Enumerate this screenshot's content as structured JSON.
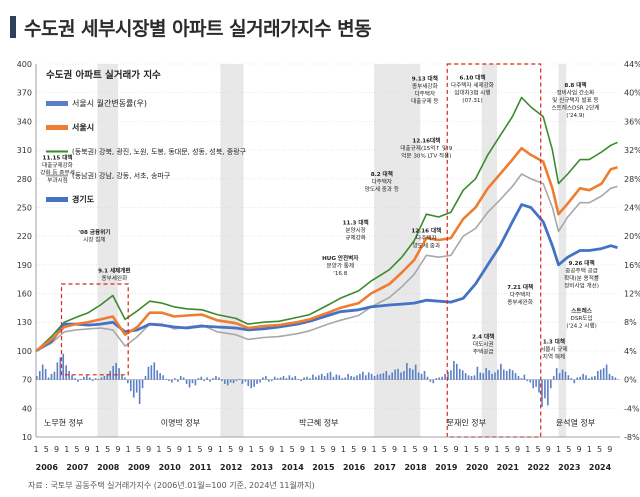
{
  "page": {
    "title": "수도권 세부시장별 아파트 실거래가지수 변동",
    "source": "자료 : 국토부 공동주택 실거래가지수 (2006년.01월=100 기준, 2024년 11월까지)"
  },
  "colors": {
    "seoul_apt": "#ee7d31",
    "northeast": "#3a8a2e",
    "southeast": "#a8a8a8",
    "gyeonggi": "#4472c4",
    "monthly_bar": "#5b7fc6",
    "shade": "#e8e8e8",
    "highlight_box": "#d9261c"
  },
  "chart_data": {
    "type": "line",
    "title": "수도권 아파트 실거래가 지수",
    "left_axis": {
      "ylim": [
        10,
        400
      ],
      "ticks": [
        10,
        40,
        70,
        100,
        130,
        160,
        190,
        220,
        250,
        280,
        310,
        340,
        370,
        400
      ]
    },
    "right_axis": {
      "ylim": [
        -8,
        44
      ],
      "ticks": [
        "-8%",
        "-4%",
        "0%",
        "4%",
        "8%",
        "12%",
        "16%",
        "20%",
        "24%",
        "28%",
        "32%",
        "36%",
        "40%",
        "44%"
      ]
    },
    "x_month_labels": [
      "1",
      "5",
      "9"
    ],
    "x_years": [
      "2006",
      "2007",
      "2008",
      "2009",
      "2010",
      "2011",
      "2012",
      "2013",
      "2014",
      "2015",
      "2016",
      "2017",
      "2018",
      "2019",
      "2020",
      "2021",
      "2022",
      "2023",
      "2024"
    ],
    "legend": [
      {
        "name": "서울시 월간변동률(우)",
        "key": "monthly_bar"
      },
      {
        "name": "서울시",
        "key": "seoul_apt"
      },
      {
        "name": "(동북권) 강북, 광진, 노원, 도봉, 동대문, 성동, 성북, 중랑구",
        "key": "northeast"
      },
      {
        "name": "(동남권) 강남, 강동, 서초, 송파구",
        "key": "southeast"
      },
      {
        "name": "경기도",
        "key": "gyeonggi"
      }
    ],
    "series": [
      {
        "name": "서울시",
        "key": "seoul_apt",
        "points": [
          [
            2006.0,
            100
          ],
          [
            2006.5,
            112
          ],
          [
            2006.92,
            125
          ],
          [
            2007.3,
            128
          ],
          [
            2007.7,
            130
          ],
          [
            2008.1,
            133
          ],
          [
            2008.5,
            136
          ],
          [
            2008.9,
            117
          ],
          [
            2009.3,
            125
          ],
          [
            2009.7,
            140
          ],
          [
            2010.1,
            140
          ],
          [
            2010.5,
            136
          ],
          [
            2010.9,
            137
          ],
          [
            2011.4,
            138
          ],
          [
            2011.9,
            132
          ],
          [
            2012.5,
            129
          ],
          [
            2012.9,
            124
          ],
          [
            2013.4,
            126
          ],
          [
            2013.9,
            127
          ],
          [
            2014.5,
            130
          ],
          [
            2014.9,
            133
          ],
          [
            2015.5,
            140
          ],
          [
            2015.9,
            145
          ],
          [
            2016.5,
            150
          ],
          [
            2016.9,
            160
          ],
          [
            2017.5,
            170
          ],
          [
            2017.9,
            182
          ],
          [
            2018.3,
            195
          ],
          [
            2018.7,
            218
          ],
          [
            2019.1,
            216
          ],
          [
            2019.5,
            218
          ],
          [
            2019.9,
            238
          ],
          [
            2020.3,
            250
          ],
          [
            2020.7,
            270
          ],
          [
            2021.1,
            285
          ],
          [
            2021.5,
            300
          ],
          [
            2021.8,
            312
          ],
          [
            2022.1,
            305
          ],
          [
            2022.5,
            298
          ],
          [
            2022.8,
            270
          ],
          [
            2023.0,
            243
          ],
          [
            2023.3,
            254
          ],
          [
            2023.7,
            270
          ],
          [
            2024.0,
            268
          ],
          [
            2024.4,
            275
          ],
          [
            2024.7,
            290
          ],
          [
            2024.92,
            292
          ]
        ]
      },
      {
        "name": "(동북권)",
        "key": "northeast",
        "points": [
          [
            2006.0,
            100
          ],
          [
            2006.5,
            115
          ],
          [
            2006.92,
            130
          ],
          [
            2007.3,
            135
          ],
          [
            2007.7,
            140
          ],
          [
            2008.1,
            148
          ],
          [
            2008.5,
            158
          ],
          [
            2008.9,
            133
          ],
          [
            2009.3,
            142
          ],
          [
            2009.7,
            152
          ],
          [
            2010.1,
            150
          ],
          [
            2010.5,
            146
          ],
          [
            2010.9,
            144
          ],
          [
            2011.4,
            143
          ],
          [
            2011.9,
            138
          ],
          [
            2012.5,
            134
          ],
          [
            2012.9,
            128
          ],
          [
            2013.4,
            130
          ],
          [
            2013.9,
            131
          ],
          [
            2014.5,
            135
          ],
          [
            2014.9,
            138
          ],
          [
            2015.5,
            148
          ],
          [
            2015.9,
            155
          ],
          [
            2016.5,
            163
          ],
          [
            2016.9,
            173
          ],
          [
            2017.5,
            185
          ],
          [
            2017.9,
            198
          ],
          [
            2018.3,
            215
          ],
          [
            2018.7,
            243
          ],
          [
            2019.1,
            240
          ],
          [
            2019.5,
            245
          ],
          [
            2019.9,
            268
          ],
          [
            2020.3,
            280
          ],
          [
            2020.7,
            305
          ],
          [
            2021.1,
            325
          ],
          [
            2021.5,
            345
          ],
          [
            2021.8,
            365
          ],
          [
            2022.1,
            355
          ],
          [
            2022.5,
            345
          ],
          [
            2022.8,
            310
          ],
          [
            2023.0,
            275
          ],
          [
            2023.3,
            285
          ],
          [
            2023.7,
            300
          ],
          [
            2024.0,
            300
          ],
          [
            2024.4,
            308
          ],
          [
            2024.7,
            315
          ],
          [
            2024.92,
            318
          ]
        ]
      },
      {
        "name": "(동남권)",
        "key": "southeast",
        "points": [
          [
            2006.0,
            100
          ],
          [
            2006.5,
            108
          ],
          [
            2006.92,
            120
          ],
          [
            2007.3,
            122
          ],
          [
            2007.7,
            123
          ],
          [
            2008.1,
            124
          ],
          [
            2008.5,
            122
          ],
          [
            2008.9,
            105
          ],
          [
            2009.3,
            115
          ],
          [
            2009.7,
            128
          ],
          [
            2010.1,
            128
          ],
          [
            2010.5,
            123
          ],
          [
            2010.9,
            125
          ],
          [
            2011.4,
            127
          ],
          [
            2011.9,
            120
          ],
          [
            2012.5,
            117
          ],
          [
            2012.9,
            112
          ],
          [
            2013.4,
            114
          ],
          [
            2013.9,
            115
          ],
          [
            2014.5,
            118
          ],
          [
            2014.9,
            121
          ],
          [
            2015.5,
            128
          ],
          [
            2015.9,
            132
          ],
          [
            2016.5,
            137
          ],
          [
            2016.9,
            146
          ],
          [
            2017.5,
            156
          ],
          [
            2017.9,
            167
          ],
          [
            2018.3,
            180
          ],
          [
            2018.7,
            200
          ],
          [
            2019.1,
            198
          ],
          [
            2019.5,
            200
          ],
          [
            2019.9,
            220
          ],
          [
            2020.3,
            228
          ],
          [
            2020.7,
            245
          ],
          [
            2021.1,
            258
          ],
          [
            2021.5,
            272
          ],
          [
            2021.8,
            285
          ],
          [
            2022.1,
            280
          ],
          [
            2022.5,
            275
          ],
          [
            2022.8,
            250
          ],
          [
            2023.0,
            225
          ],
          [
            2023.3,
            240
          ],
          [
            2023.7,
            255
          ],
          [
            2024.0,
            255
          ],
          [
            2024.4,
            262
          ],
          [
            2024.7,
            270
          ],
          [
            2024.92,
            272
          ]
        ]
      },
      {
        "name": "경기도",
        "key": "gyeonggi",
        "points": [
          [
            2006.0,
            100
          ],
          [
            2006.5,
            110
          ],
          [
            2006.92,
            128
          ],
          [
            2007.3,
            128
          ],
          [
            2007.7,
            127
          ],
          [
            2008.1,
            128
          ],
          [
            2008.5,
            130
          ],
          [
            2008.9,
            120
          ],
          [
            2009.3,
            122
          ],
          [
            2009.7,
            128
          ],
          [
            2010.1,
            127
          ],
          [
            2010.5,
            125
          ],
          [
            2010.9,
            124
          ],
          [
            2011.4,
            126
          ],
          [
            2011.9,
            125
          ],
          [
            2012.5,
            124
          ],
          [
            2012.9,
            122
          ],
          [
            2013.4,
            123
          ],
          [
            2013.9,
            125
          ],
          [
            2014.5,
            128
          ],
          [
            2014.9,
            131
          ],
          [
            2015.5,
            137
          ],
          [
            2015.9,
            141
          ],
          [
            2016.5,
            143
          ],
          [
            2016.9,
            146
          ],
          [
            2017.5,
            148
          ],
          [
            2017.9,
            149
          ],
          [
            2018.3,
            150
          ],
          [
            2018.7,
            153
          ],
          [
            2019.1,
            152
          ],
          [
            2019.5,
            151
          ],
          [
            2019.9,
            155
          ],
          [
            2020.3,
            170
          ],
          [
            2020.7,
            190
          ],
          [
            2021.1,
            210
          ],
          [
            2021.5,
            235
          ],
          [
            2021.8,
            253
          ],
          [
            2022.1,
            250
          ],
          [
            2022.5,
            235
          ],
          [
            2022.8,
            210
          ],
          [
            2023.0,
            190
          ],
          [
            2023.3,
            198
          ],
          [
            2023.7,
            205
          ],
          [
            2024.0,
            205
          ],
          [
            2024.4,
            207
          ],
          [
            2024.7,
            210
          ],
          [
            2024.92,
            208
          ]
        ]
      }
    ],
    "monthly_change_pct": [
      0.5,
      1.2,
      2.1,
      1.5,
      0.3,
      0.8,
      1.1,
      2.4,
      3.1,
      3.6,
      2.0,
      1.2,
      0.6,
      0.2,
      -0.3,
      0.1,
      0.4,
      0.6,
      0.3,
      -0.2,
      0.2,
      0.1,
      0.3,
      0.5,
      0.8,
      1.2,
      1.9,
      2.3,
      1.6,
      0.7,
      0.3,
      -0.5,
      -1.6,
      -2.5,
      -1.8,
      -3.4,
      -1.2,
      0.5,
      1.8,
      2.0,
      2.4,
      1.3,
      0.9,
      0.6,
      0.1,
      -0.2,
      -0.4,
      0.2,
      -0.3,
      0.5,
      0.3,
      -0.6,
      -1.1,
      -0.5,
      -0.8,
      0.2,
      0.4,
      -0.2,
      0.3,
      -0.3,
      0.2,
      0.5,
      0.3,
      -0.2,
      -0.6,
      -0.8,
      -0.4,
      -0.5,
      -0.2,
      0.1,
      -0.6,
      -0.3,
      -0.9,
      -1.2,
      -1.0,
      -0.6,
      -0.4,
      0.3,
      0.5,
      -0.3,
      -0.2,
      0.4,
      0.2,
      0.3,
      0.5,
      0.2,
      0.6,
      0.3,
      0.5,
      0.1,
      -0.2,
      0.3,
      0.4,
      0.2,
      0.7,
      0.4,
      0.6,
      0.8,
      0.5,
      0.9,
      1.1,
      0.4,
      0.7,
      0.6,
      0.2,
      0.3,
      0.8,
      0.5,
      0.4,
      0.6,
      0.8,
      1.1,
      0.6,
      1.0,
      0.8,
      0.5,
      0.7,
      0.8,
      0.9,
      1.2,
      0.6,
      1.0,
      1.4,
      1.5,
      1.0,
      1.2,
      2.3,
      1.6,
      1.4,
      2.1,
      1.0,
      0.8,
      1.2,
      0.4,
      -0.3,
      -0.5,
      0.2,
      0.3,
      0.4,
      0.8,
      1.1,
      1.3,
      2.6,
      2.2,
      1.5,
      1.3,
      0.9,
      0.6,
      0.5,
      0.6,
      1.8,
      1.0,
      0.9,
      1.6,
      1.3,
      0.8,
      1.0,
      1.4,
      2.2,
      1.4,
      1.2,
      1.5,
      1.3,
      0.9,
      0.5,
      0.2,
      0.7,
      -0.2,
      -0.4,
      -1.2,
      -1.0,
      -1.8,
      -3.8,
      -2.6,
      -3.6,
      -1.2,
      0.5,
      1.6,
      0.9,
      1.4,
      1.1,
      0.6,
      0.2,
      -0.5,
      0.3,
      0.4,
      0.8,
      0.6,
      0.2,
      0.4,
      0.5,
      1.2,
      1.4,
      1.6,
      2.1,
      0.8,
      0.5,
      0.3
    ],
    "shaded_periods": [
      [
        2008.0,
        2008.67
      ],
      [
        2012.0,
        2012.75
      ],
      [
        2017.0,
        2018.5
      ],
      [
        2020.5,
        2021.0
      ],
      [
        2023.0,
        2023.25
      ]
    ],
    "highlight_boxes": [
      {
        "x": [
          2006.83,
          2009.0
        ],
        "y": [
          75,
          170
        ]
      },
      {
        "x": [
          2019.38,
          2022.42
        ],
        "y": [
          10,
          400
        ]
      }
    ],
    "government_labels": [
      {
        "text": "노무현 정부",
        "x": 2006.9
      },
      {
        "text": "이명박 정부",
        "x": 2010.7
      },
      {
        "text": "박근혜 정부",
        "x": 2015.2
      },
      {
        "text": "문재인 정부",
        "x": 2020.0
      },
      {
        "text": "윤석열 정부",
        "x": 2023.55
      }
    ],
    "annotations": [
      {
        "lines": [
          "11.15 대책",
          "대출규제강화",
          "강화 등 종부세",
          "부과시점"
        ],
        "x": 2006.7,
        "y": 300
      },
      {
        "lines": [
          "'08 금융위기",
          "시장 침체"
        ],
        "x": 2007.9,
        "y": 222
      },
      {
        "lines": [
          "9.1 세제개편",
          "종부세완화"
        ],
        "x": 2008.55,
        "y": 182
      },
      {
        "lines": [
          "HUG 안전벽자",
          "분양가 통제",
          "'16.8"
        ],
        "x": 2015.9,
        "y": 195
      },
      {
        "lines": [
          "11.3 대책",
          "분양시장",
          "규제강화"
        ],
        "x": 2016.4,
        "y": 232
      },
      {
        "lines": [
          "8.2 대책",
          "다주택자",
          "양도세 중과 등"
        ],
        "x": 2017.25,
        "y": 283
      },
      {
        "lines": [
          "9.13 대책",
          "종부세강화",
          "다주택자",
          "대출규제 등"
        ],
        "x": 2018.65,
        "y": 383
      },
      {
        "lines": [
          "12.16대책",
          "대출규제(15억↑ 및 9",
          "억분 30% LTV 적용)"
        ],
        "x": 2018.7,
        "y": 318
      },
      {
        "lines": [
          "6.10 대책",
          "다주택자 세제강화",
          "임대차3법 시행",
          "(07.31)"
        ],
        "x": 2020.2,
        "y": 384
      },
      {
        "lines": [
          "12.16 대책",
          "다주택자",
          "양도세 중과"
        ],
        "x": 2018.7,
        "y": 224
      },
      {
        "lines": [
          "7.21 대책",
          "다주택자",
          "종부세완화"
        ],
        "x": 2021.75,
        "y": 165
      },
      {
        "lines": [
          "2.4 대책",
          "대도시권",
          "주택공급"
        ],
        "x": 2020.55,
        "y": 113
      },
      {
        "lines": [
          "8.8 대책",
          "정비사업 간소화",
          "및 신규택지 발표 등",
          "스트레스DSR 2단계",
          "('24.9)"
        ],
        "x": 2023.55,
        "y": 376
      },
      {
        "lines": [
          "9.26 대책",
          "중공주택 공급",
          "확대(분 용적률",
          "정비사업 개선)"
        ],
        "x": 2023.75,
        "y": 190
      },
      {
        "lines": [
          "스트레스",
          "DSR도입",
          "('24.2 시행)"
        ],
        "x": 2023.75,
        "y": 140
      },
      {
        "lines": [
          "1.3 대책",
          "서울시 규제",
          "지역 해제"
        ],
        "x": 2022.85,
        "y": 108
      }
    ]
  }
}
